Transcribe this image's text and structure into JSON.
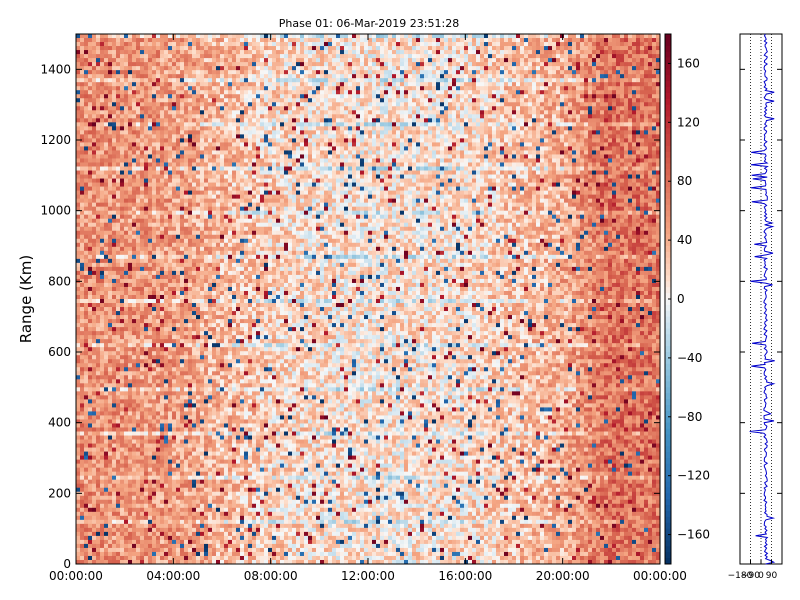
{
  "chart_data": [
    {
      "type": "heatmap",
      "title": "Phase 01: 06-Mar-2019 23:51:28",
      "xlabel": "",
      "ylabel": "Range (Km)",
      "x_ticks": [
        "00:00:00",
        "04:00:00",
        "08:00:00",
        "12:00:00",
        "16:00:00",
        "20:00:00",
        "00:00:00"
      ],
      "x_range_hours": [
        0,
        24
      ],
      "y_ticks": [
        0,
        200,
        400,
        600,
        800,
        1000,
        1200,
        1400
      ],
      "ylim": [
        0,
        1500
      ],
      "grid": false,
      "colormap": "diverging blue-white-red",
      "colorbar": {
        "ticks": [
          -160,
          -120,
          -80,
          -40,
          0,
          40,
          80,
          120,
          160
        ],
        "range": [
          -180,
          180
        ]
      },
      "value_profile": {
        "description_hours": [
          0,
          4,
          8,
          12,
          16,
          20,
          22,
          24
        ],
        "typical_phase": [
          60,
          50,
          20,
          10,
          15,
          40,
          80,
          75
        ]
      }
    },
    {
      "type": "line",
      "title": "",
      "xlabel": "",
      "ylabel": "",
      "x_ticks": [
        "−180",
        "−90",
        "0",
        "90"
      ],
      "xlim": [
        -180,
        180
      ],
      "ylim": [
        0,
        1500
      ],
      "series_color": "#0000cc",
      "baseline_phase": 40
    }
  ]
}
